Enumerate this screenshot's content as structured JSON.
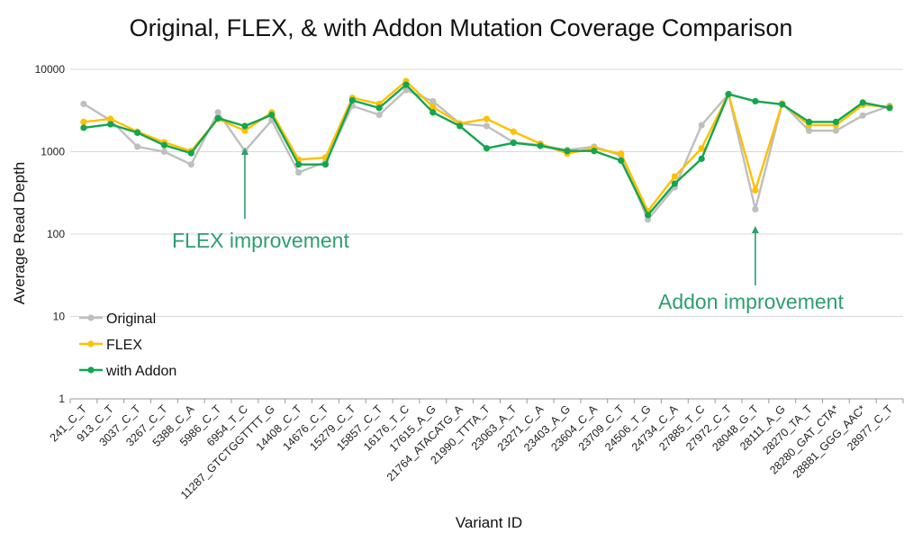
{
  "chart_data": {
    "type": "line",
    "title": "Original, FLEX, & with Addon Mutation Coverage Comparison",
    "xlabel": "Variant ID",
    "ylabel": "Average Read Depth",
    "y_scale": "log",
    "ylim": [
      1,
      10000
    ],
    "y_ticks": [
      1,
      10,
      100,
      1000,
      10000
    ],
    "y_tick_labels": [
      "1",
      "10",
      "100",
      "1000",
      "10000"
    ],
    "grid": "horizontal",
    "legend_position": "left",
    "categories": [
      "241_C_T",
      "913_C_T",
      "3037_C_T",
      "3267_C_T",
      "5388_C_A",
      "5986_C_T",
      "6954_T_C",
      "11287_GTCTGGTTTT_G",
      "14408_C_T",
      "14676_C_T",
      "15279_C_T",
      "15857_C_T",
      "16176_T_C",
      "17615_A_G",
      "21764_ATACATG_A",
      "21990_TTTA_T",
      "23063_A_T",
      "23271_C_A",
      "23403_A_G",
      "23604_C_A",
      "23709_C_T",
      "24506_T_G",
      "24734_C_A",
      "27885_T_C",
      "27972_C_T",
      "28048_G_T",
      "28111_A_G",
      "28270_TA_T",
      "28280_GAT_CTA*",
      "28881_GGG_AAC*",
      "28977_C_T"
    ],
    "series": [
      {
        "name": "Original",
        "color": "#bfbfbf",
        "values": [
          3800,
          2400,
          1150,
          1000,
          700,
          3000,
          1020,
          2400,
          560,
          750,
          3600,
          2800,
          5600,
          4100,
          2200,
          2050,
          1300,
          1200,
          1050,
          1150,
          900,
          150,
          370,
          2100,
          5000,
          200,
          3850,
          1800,
          1800,
          2750,
          3600
        ]
      },
      {
        "name": "FLEX",
        "color": "#ffc000",
        "values": [
          2300,
          2500,
          1750,
          1300,
          1020,
          2500,
          1800,
          3000,
          800,
          850,
          4500,
          3800,
          7200,
          3500,
          2200,
          2500,
          1750,
          1250,
          950,
          1100,
          950,
          190,
          500,
          1100,
          5000,
          340,
          3850,
          2100,
          2100,
          3700,
          3500
        ]
      },
      {
        "name": "with Addon",
        "color": "#12a64f",
        "values": [
          1950,
          2150,
          1700,
          1200,
          960,
          2550,
          2050,
          2800,
          700,
          700,
          4200,
          3400,
          6500,
          3000,
          2050,
          1100,
          1280,
          1180,
          1020,
          1020,
          780,
          170,
          410,
          820,
          5000,
          4100,
          3750,
          2300,
          2300,
          3950,
          3400
        ]
      }
    ],
    "annotations": [
      {
        "text": "FLEX improvement",
        "category": "6954_T_C",
        "color": "#2e9e6f"
      },
      {
        "text": "Addon improvement",
        "category": "28048_G_T",
        "color": "#2e9e6f"
      }
    ]
  }
}
